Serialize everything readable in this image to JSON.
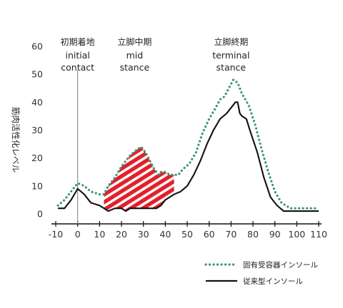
{
  "chart_data": {
    "type": "line",
    "ylabel": "筋肉活性化レベル",
    "xlabel": "",
    "xlim": [
      -10,
      110
    ],
    "ylim": [
      0,
      60
    ],
    "x_ticks": [
      -10,
      0,
      10,
      20,
      30,
      40,
      50,
      60,
      70,
      80,
      90,
      100,
      110
    ],
    "y_ticks": [
      0,
      10,
      20,
      30,
      40,
      50,
      60
    ],
    "phases": [
      {
        "jp": "初期着地",
        "en_line1": "initial",
        "en_line2": "contact",
        "x": 0
      },
      {
        "jp": "立脚中期",
        "en_line1": "mid",
        "en_line2": "stance",
        "x": 26
      },
      {
        "jp": "立脚終期",
        "en_line1": "terminal",
        "en_line2": "stance",
        "x": 70
      }
    ],
    "initial_contact_line_x": 0,
    "shaded_region": {
      "x_start": 12,
      "x_end": 44,
      "fill": "#e2202a",
      "stripe": "#ffffff"
    },
    "series": [
      {
        "name": "固有受容器インソール",
        "style": "dotted",
        "color": "#3e9478",
        "points": [
          [
            -9,
            3
          ],
          [
            -6,
            5
          ],
          [
            -3,
            8
          ],
          [
            0,
            11
          ],
          [
            3,
            10
          ],
          [
            6,
            8
          ],
          [
            10,
            7
          ],
          [
            12,
            7
          ],
          [
            14,
            10
          ],
          [
            17,
            13
          ],
          [
            20,
            17
          ],
          [
            24,
            21
          ],
          [
            27,
            23
          ],
          [
            29,
            24
          ],
          [
            31,
            22
          ],
          [
            33,
            19
          ],
          [
            35,
            16
          ],
          [
            37,
            14
          ],
          [
            38,
            15
          ],
          [
            40,
            15
          ],
          [
            42,
            14
          ],
          [
            44,
            14
          ],
          [
            46,
            14
          ],
          [
            48,
            16
          ],
          [
            51,
            18
          ],
          [
            54,
            22
          ],
          [
            57,
            29
          ],
          [
            60,
            34
          ],
          [
            63,
            38
          ],
          [
            65,
            41
          ],
          [
            67,
            42
          ],
          [
            69,
            45
          ],
          [
            71,
            48
          ],
          [
            73,
            47
          ],
          [
            75,
            43
          ],
          [
            78,
            39
          ],
          [
            81,
            32
          ],
          [
            84,
            23
          ],
          [
            87,
            15
          ],
          [
            90,
            8
          ],
          [
            93,
            4
          ],
          [
            97,
            2
          ],
          [
            101,
            2
          ],
          [
            106,
            2
          ],
          [
            110,
            2
          ]
        ]
      },
      {
        "name": "従来型インソール",
        "style": "solid",
        "color": "#111111",
        "points": [
          [
            -9,
            2
          ],
          [
            -6,
            2
          ],
          [
            -3,
            5
          ],
          [
            0,
            9
          ],
          [
            3,
            7
          ],
          [
            6,
            4
          ],
          [
            10,
            3
          ],
          [
            12,
            2
          ],
          [
            14,
            1
          ],
          [
            17,
            2
          ],
          [
            20,
            2
          ],
          [
            22,
            1
          ],
          [
            24,
            2
          ],
          [
            26,
            2
          ],
          [
            28,
            2
          ],
          [
            30,
            2
          ],
          [
            32,
            2
          ],
          [
            34,
            2
          ],
          [
            36,
            2
          ],
          [
            38,
            3
          ],
          [
            40,
            5
          ],
          [
            42,
            6
          ],
          [
            44,
            7
          ],
          [
            47,
            8
          ],
          [
            50,
            10
          ],
          [
            53,
            14
          ],
          [
            56,
            19
          ],
          [
            59,
            25
          ],
          [
            62,
            30
          ],
          [
            65,
            34
          ],
          [
            68,
            36
          ],
          [
            70,
            38
          ],
          [
            72,
            40
          ],
          [
            73,
            40
          ],
          [
            74,
            36
          ],
          [
            75,
            35
          ],
          [
            77,
            34
          ],
          [
            79,
            29
          ],
          [
            82,
            22
          ],
          [
            85,
            13
          ],
          [
            88,
            6
          ],
          [
            91,
            3
          ],
          [
            94,
            1
          ],
          [
            97,
            1
          ],
          [
            101,
            1
          ],
          [
            106,
            1
          ],
          [
            110,
            1
          ]
        ]
      }
    ],
    "legend": [
      {
        "label": "固有受容器インソール",
        "style": "dotted",
        "color": "#3e9478"
      },
      {
        "label": "従来型インソール",
        "style": "solid",
        "color": "#111111"
      }
    ],
    "legend_position": "bottom-right",
    "grid": false
  }
}
